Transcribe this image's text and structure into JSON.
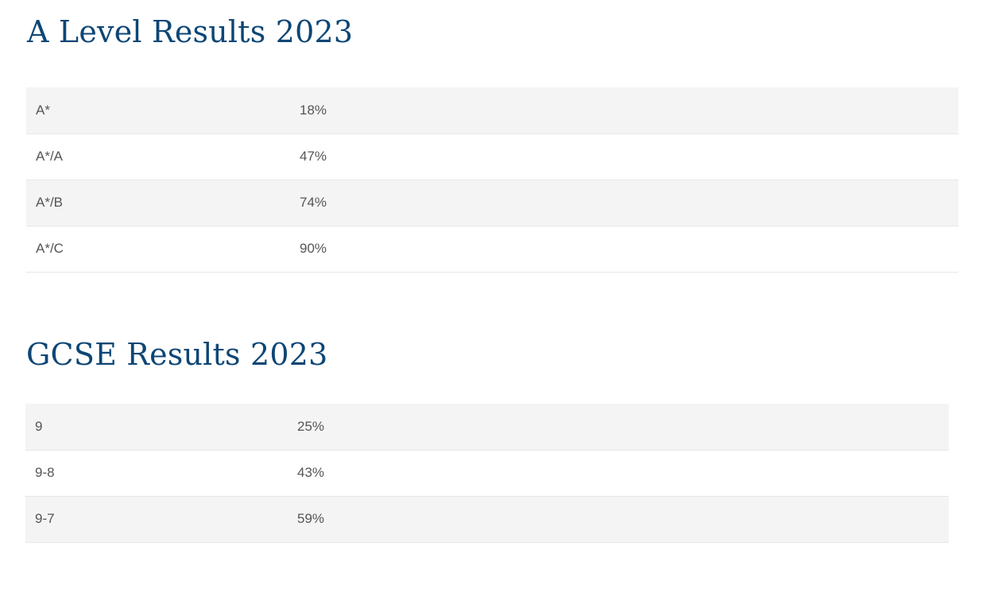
{
  "a_level": {
    "title": "A Level Results 2023",
    "rows": [
      {
        "grade": "A*",
        "percent": "18%"
      },
      {
        "grade": "A*/A",
        "percent": "47%"
      },
      {
        "grade": "A*/B",
        "percent": "74%"
      },
      {
        "grade": "A*/C",
        "percent": "90%"
      }
    ]
  },
  "gcse": {
    "title": "GCSE Results 2023",
    "rows": [
      {
        "grade": "9",
        "percent": "25%"
      },
      {
        "grade": "9-8",
        "percent": "43%"
      },
      {
        "grade": "9-7",
        "percent": "59%"
      }
    ]
  },
  "colors": {
    "heading": "#0d4675",
    "row_stripe": "#f4f4f4",
    "cell_text": "#555555",
    "divider": "#e6e6e6"
  }
}
